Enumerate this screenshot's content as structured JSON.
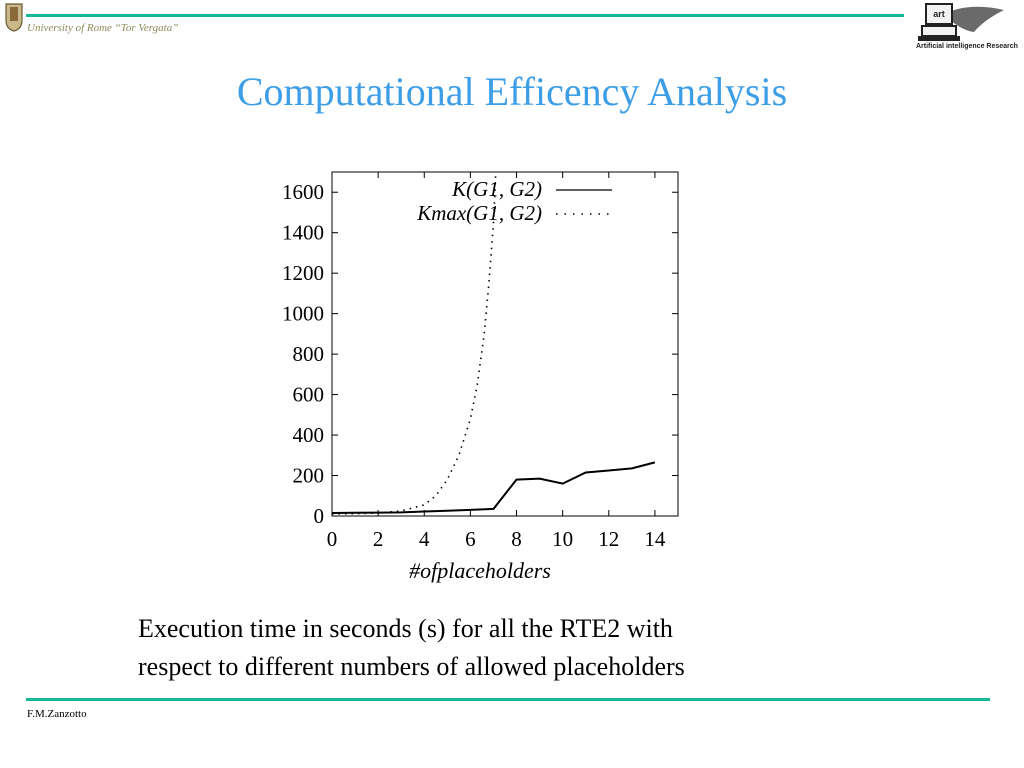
{
  "header": {
    "university": "University of Rome “Tor Vergata”",
    "logo_right_label": "art",
    "logo_right_caption": "Artificial intelligence Research"
  },
  "slide": {
    "title": "Computational Efficency Analysis",
    "caption_line1": "Execution time in seconds (s) for all the RTE2 with",
    "caption_line2": "respect to different numbers of allowed placeholders"
  },
  "footer": {
    "author": "F.M.Zanzotto"
  },
  "colors": {
    "accent_rule": "#17b89a",
    "title": "#3d9ee8"
  },
  "chart_data": {
    "type": "line",
    "xlabel": "#ofplaceholders",
    "ylabel": "",
    "xlim": [
      0,
      15
    ],
    "ylim": [
      0,
      1700
    ],
    "xticks": [
      0,
      2,
      4,
      6,
      8,
      10,
      12,
      14
    ],
    "yticks": [
      0,
      200,
      400,
      600,
      800,
      1000,
      1200,
      1400,
      1600
    ],
    "legend_position": "top-right",
    "series": [
      {
        "name": "K(G1, G2)",
        "style": "solid",
        "x": [
          0,
          1,
          2,
          3,
          4,
          5,
          6,
          7,
          8,
          9,
          10,
          11,
          12,
          13,
          14
        ],
        "y": [
          15,
          16,
          17,
          18,
          22,
          26,
          30,
          35,
          180,
          185,
          160,
          215,
          225,
          235,
          265
        ]
      },
      {
        "name": "Kmax(G1, G2)",
        "style": "dotted",
        "x": [
          0,
          1,
          2,
          3,
          4,
          4.5,
          5,
          5.5,
          6,
          6.3,
          6.6,
          6.8,
          7,
          7.1
        ],
        "y": [
          10,
          12,
          15,
          25,
          55,
          100,
          180,
          300,
          480,
          650,
          900,
          1150,
          1450,
          1700
        ]
      }
    ]
  }
}
